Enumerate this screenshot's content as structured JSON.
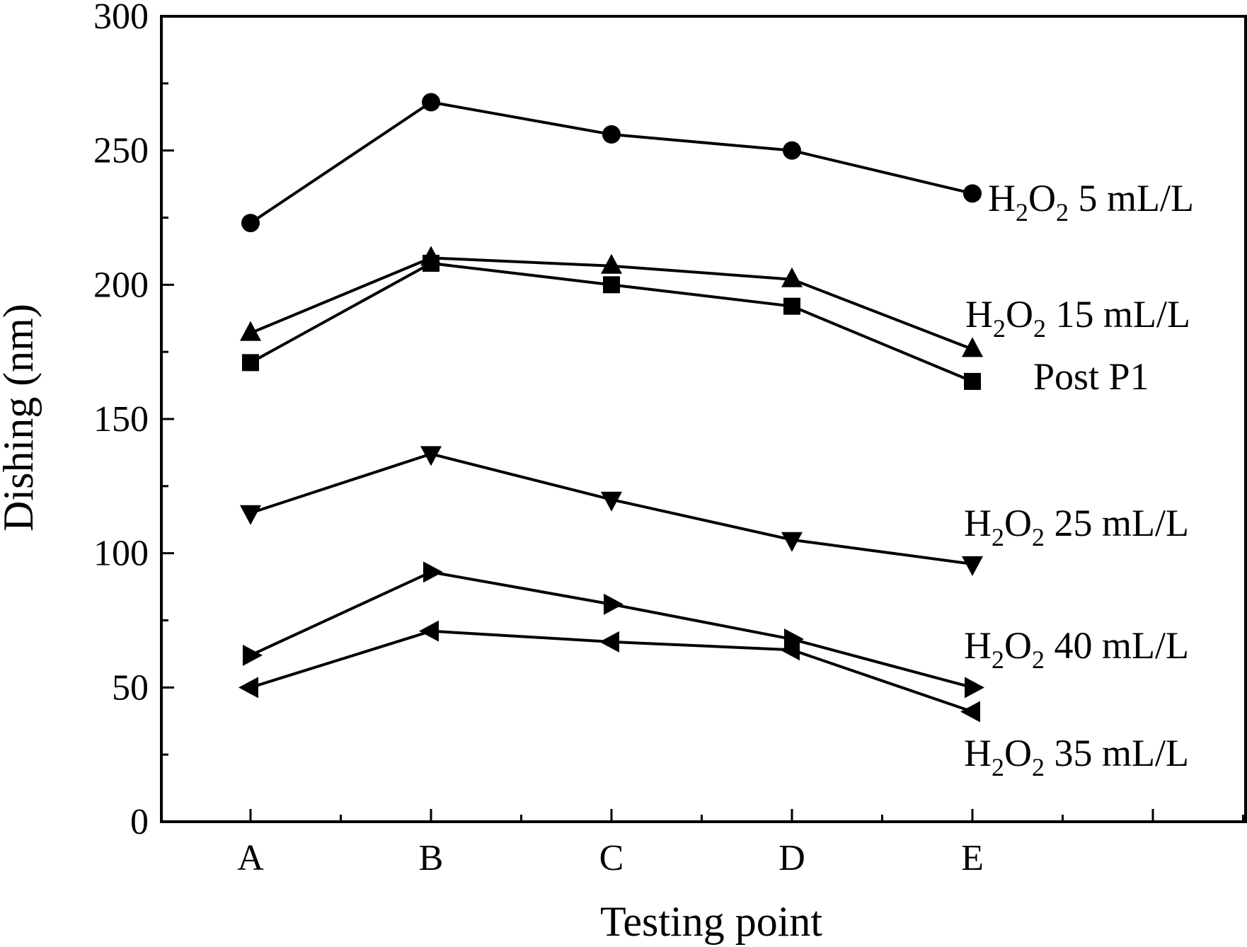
{
  "chart_data": {
    "type": "line",
    "title": "",
    "xlabel": "Testing point",
    "ylabel": "Dishing (nm)",
    "categories": [
      "A",
      "B",
      "C",
      "D",
      "E"
    ],
    "ylim": [
      0,
      300
    ],
    "yticks": [
      0,
      50,
      100,
      150,
      200,
      250,
      300
    ],
    "grid": false,
    "legend": "inline-right",
    "series": [
      {
        "id": "h2o2-5",
        "name": "H2O2 5 mL/L",
        "label": {
          "chem": "H",
          "sub1": "2",
          "mid": "O",
          "sub2": "2",
          "rest": " 5 mL/L"
        },
        "marker": "circle",
        "values": [
          223,
          268,
          256,
          250,
          234
        ]
      },
      {
        "id": "h2o2-15",
        "name": "H2O2 15 mL/L",
        "label": {
          "chem": "H",
          "sub1": "2",
          "mid": "O",
          "sub2": "2",
          "rest": " 15 mL/L"
        },
        "marker": "triangle-up",
        "values": [
          182,
          210,
          207,
          202,
          176
        ]
      },
      {
        "id": "post-p1",
        "name": "Post P1",
        "label": {
          "text": "Post P1"
        },
        "marker": "square",
        "values": [
          171,
          208,
          200,
          192,
          164
        ]
      },
      {
        "id": "h2o2-25",
        "name": "H2O2 25 mL/L",
        "label": {
          "chem": "H",
          "sub1": "2",
          "mid": "O",
          "sub2": "2",
          "rest": " 25 mL/L"
        },
        "marker": "triangle-down",
        "values": [
          115,
          137,
          120,
          105,
          96
        ]
      },
      {
        "id": "h2o2-40",
        "name": "H2O2 40 mL/L",
        "label": {
          "chem": "H",
          "sub1": "2",
          "mid": "O",
          "sub2": "2",
          "rest": " 40 mL/L"
        },
        "marker": "triangle-right",
        "values": [
          62,
          93,
          81,
          68,
          50
        ]
      },
      {
        "id": "h2o2-35",
        "name": "H2O2 35 mL/L",
        "label": {
          "chem": "H",
          "sub1": "2",
          "mid": "O",
          "sub2": "2",
          "rest": " 35 mL/L"
        },
        "marker": "triangle-left",
        "values": [
          50,
          71,
          67,
          64,
          41
        ]
      }
    ]
  }
}
